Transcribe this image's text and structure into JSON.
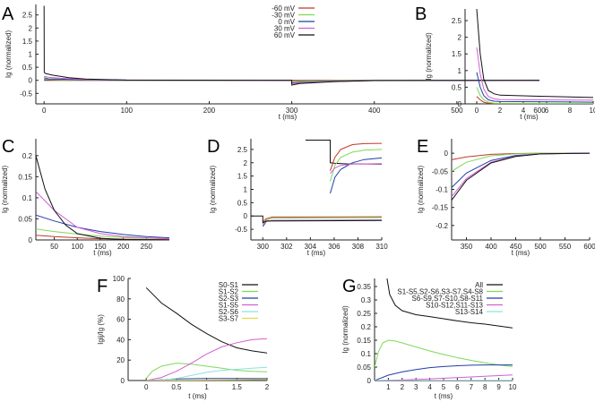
{
  "colors": {
    "-60 mV": "#c0392b",
    "-30 mV": "#7ed957",
    "0 mV": "#1f3fa8",
    "30 mV": "#d35fd3",
    "60 mV": "#111111",
    "S0-S1": "#111111",
    "S1-S2": "#7ed957",
    "S2-S3": "#1f3fa8",
    "S1-S5": "#d35fd3",
    "S2-S6": "#8fe0e0",
    "S3-S7": "#e6d84a"
  },
  "chart_data": [
    {
      "panel": "A",
      "type": "line",
      "title": "",
      "xlabel": "t (ms)",
      "ylabel": "Ig (normalized)",
      "xlim": [
        -10,
        600
      ],
      "ylim": [
        -0.9,
        2.9
      ],
      "xticks": [
        0,
        100,
        200,
        300,
        400,
        500,
        600
      ],
      "yticks": [
        -0.5,
        0,
        0.5,
        1,
        1.5,
        2,
        2.5
      ],
      "grid": false,
      "legend": "top-right",
      "series": [
        {
          "name": "-60 mV",
          "x": [
            0,
            5,
            20,
            50,
            100,
            299.9,
            300,
            310,
            350,
            400,
            600
          ],
          "y": [
            0.03,
            0.02,
            0.01,
            0.005,
            0,
            0,
            -0.02,
            -0.01,
            -0.003,
            0,
            0
          ]
        },
        {
          "name": "-30 mV",
          "x": [
            0,
            5,
            20,
            50,
            100,
            299.9,
            300,
            310,
            350,
            400,
            600
          ],
          "y": [
            0.06,
            0.04,
            0.025,
            0.01,
            0,
            0,
            -0.05,
            -0.04,
            -0.015,
            -0.003,
            0
          ]
        },
        {
          "name": "0 mV",
          "x": [
            0,
            5,
            20,
            50,
            100,
            299.9,
            300,
            310,
            350,
            400,
            600
          ],
          "y": [
            0.1,
            0.06,
            0.045,
            0.02,
            0.005,
            0,
            -0.1,
            -0.08,
            -0.03,
            -0.008,
            0
          ]
        },
        {
          "name": "30 mV",
          "x": [
            0,
            5,
            20,
            50,
            100,
            299.9,
            300,
            310,
            350,
            400,
            600
          ],
          "y": [
            0.15,
            0.12,
            0.08,
            0.03,
            0.01,
            0,
            -0.13,
            -0.1,
            -0.04,
            -0.01,
            0
          ]
        },
        {
          "name": "60 mV",
          "x": [
            0,
            0.2,
            2,
            10,
            30,
            50,
            100,
            299.9,
            300,
            310,
            350,
            400,
            600
          ],
          "y": [
            2.85,
            0.3,
            0.26,
            0.2,
            0.1,
            0.05,
            0.01,
            0,
            -0.18,
            -0.12,
            -0.05,
            -0.01,
            0
          ]
        }
      ]
    },
    {
      "panel": "B",
      "type": "line",
      "xlabel": "t (ms)",
      "ylabel": "Ig (normalized)",
      "xlim": [
        -1,
        10
      ],
      "ylim": [
        0,
        2.85
      ],
      "xticks": [
        0,
        2,
        4,
        6,
        8,
        10
      ],
      "yticks": [
        0,
        0.5,
        1,
        1.5,
        2,
        2.5
      ],
      "grid": false,
      "series": [
        {
          "name": "-60 mV",
          "x": [
            0,
            0.3,
            0.6,
            1,
            1.5,
            10
          ],
          "y": [
            0.22,
            0.12,
            0.05,
            0.02,
            0.01,
            0.005
          ]
        },
        {
          "name": "-30 mV",
          "x": [
            0,
            0.3,
            0.6,
            1,
            1.5,
            2,
            10
          ],
          "y": [
            0.5,
            0.25,
            0.12,
            0.05,
            0.02,
            0.015,
            0.01
          ]
        },
        {
          "name": "0 mV",
          "x": [
            0,
            0.3,
            0.6,
            1,
            1.5,
            2,
            10
          ],
          "y": [
            0.95,
            0.5,
            0.25,
            0.12,
            0.08,
            0.07,
            0.05
          ]
        },
        {
          "name": "30 mV",
          "x": [
            0,
            0.3,
            0.6,
            1,
            1.5,
            2,
            5,
            10
          ],
          "y": [
            1.7,
            0.9,
            0.45,
            0.22,
            0.15,
            0.13,
            0.12,
            0.11
          ]
        },
        {
          "name": "60 mV",
          "x": [
            0,
            0.3,
            0.6,
            1,
            1.5,
            2,
            5,
            10
          ],
          "y": [
            2.85,
            1.5,
            0.75,
            0.4,
            0.3,
            0.26,
            0.23,
            0.19
          ]
        }
      ]
    },
    {
      "panel": "C",
      "type": "line",
      "xlabel": "t (ms)",
      "ylabel": "Ig (normalized)",
      "xlim": [
        10,
        300
      ],
      "ylim": [
        0,
        0.24
      ],
      "xticks": [
        50,
        100,
        150,
        200,
        250
      ],
      "yticks": [
        0,
        0.05,
        0.1,
        0.15,
        0.2
      ],
      "grid": false,
      "series": [
        {
          "name": "-60 mV",
          "x": [
            10,
            50,
            100,
            150,
            200,
            250,
            300
          ],
          "y": [
            0.011,
            0.008,
            0.005,
            0.003,
            0.002,
            0.001,
            0.001
          ]
        },
        {
          "name": "-30 mV",
          "x": [
            10,
            50,
            100,
            150,
            200,
            250,
            300
          ],
          "y": [
            0.026,
            0.02,
            0.014,
            0.009,
            0.006,
            0.004,
            0.003
          ]
        },
        {
          "name": "0 mV",
          "x": [
            10,
            50,
            100,
            150,
            200,
            250,
            300
          ],
          "y": [
            0.059,
            0.045,
            0.03,
            0.02,
            0.013,
            0.008,
            0.005
          ]
        },
        {
          "name": "30 mV",
          "x": [
            10,
            50,
            100,
            150,
            200,
            250,
            300
          ],
          "y": [
            0.115,
            0.07,
            0.03,
            0.015,
            0.008,
            0.005,
            0.003
          ]
        },
        {
          "name": "60 mV",
          "x": [
            10,
            30,
            50,
            75,
            100,
            150,
            200,
            300
          ],
          "y": [
            0.2,
            0.12,
            0.07,
            0.035,
            0.015,
            0.004,
            0.001,
            0
          ]
        }
      ]
    },
    {
      "panel": "D",
      "type": "line",
      "xlabel": "t (ms)",
      "ylabel": "Ig (normalized)",
      "xlim": [
        299,
        310
      ],
      "ylim": [
        -0.9,
        2.9
      ],
      "xticks": [
        300,
        302,
        304,
        306,
        308,
        310
      ],
      "yticks": [
        -0.5,
        0,
        0.5,
        1,
        1.5,
        2,
        2.5
      ],
      "grid": false,
      "series": [
        {
          "name": "-60 mV",
          "x": [
            300,
            300.3,
            300.8,
            310
          ],
          "y": [
            -0.22,
            -0.1,
            -0.04,
            -0.03
          ]
        },
        {
          "name": "-30 mV",
          "x": [
            300,
            300.3,
            300.8,
            310
          ],
          "y": [
            -0.3,
            -0.15,
            -0.08,
            -0.06
          ]
        },
        {
          "name": "0 mV",
          "x": [
            300,
            300.3,
            300.8,
            310
          ],
          "y": [
            -0.4,
            -0.2,
            -0.17,
            -0.15
          ]
        },
        {
          "name": "30 mV",
          "x": [
            300,
            300.3,
            300.8,
            310
          ],
          "y": [
            -0.35,
            -0.19,
            -0.17,
            -0.16
          ]
        },
        {
          "name": "60 mV",
          "x": [
            299,
            300,
            300,
            300.3,
            310
          ],
          "y": [
            0,
            0,
            -0.25,
            -0.19,
            -0.17
          ]
        }
      ],
      "inset": {
        "xlim": [
          303.3,
          310
        ],
        "ylim": [
          0.7,
          2.9
        ],
        "series": [
          {
            "name": "60 mV",
            "x": [
              303.5,
              305.6,
              305.6,
              306,
              307,
              310
            ],
            "y": [
              2.85,
              2.85,
              2.0,
              1.98,
              1.96,
              1.95
            ]
          },
          {
            "name": "-60 mV",
            "x": [
              305.6,
              306,
              306.5,
              307.5,
              308.5,
              310
            ],
            "y": [
              1.7,
              2.2,
              2.5,
              2.68,
              2.72,
              2.73
            ]
          },
          {
            "name": "-30 mV",
            "x": [
              305.6,
              306,
              306.5,
              307.5,
              308.5,
              310
            ],
            "y": [
              1.3,
              1.9,
              2.2,
              2.4,
              2.47,
              2.5
            ]
          },
          {
            "name": "0 mV",
            "x": [
              305.6,
              306,
              306.5,
              307.5,
              308.5,
              310
            ],
            "y": [
              0.85,
              1.45,
              1.75,
              2.0,
              2.12,
              2.18
            ]
          },
          {
            "name": "30 mV",
            "x": [
              305.6,
              306,
              306.5,
              307.5,
              310
            ],
            "y": [
              1.6,
              1.8,
              1.9,
              1.95,
              1.97
            ]
          }
        ]
      }
    },
    {
      "panel": "E",
      "type": "line",
      "xlabel": "t (ms)",
      "ylabel": "Ig (normalized)",
      "xlim": [
        320,
        600
      ],
      "ylim": [
        -0.24,
        0.04
      ],
      "xticks": [
        350,
        400,
        450,
        500,
        550,
        600
      ],
      "yticks": [
        -0.2,
        -0.15,
        -0.1,
        -0.05,
        0
      ],
      "grid": false,
      "series": [
        {
          "name": "-60 mV",
          "x": [
            320,
            350,
            400,
            450,
            500,
            600
          ],
          "y": [
            -0.018,
            -0.01,
            -0.003,
            -0.001,
            0,
            0
          ]
        },
        {
          "name": "-30 mV",
          "x": [
            320,
            350,
            400,
            450,
            500,
            600
          ],
          "y": [
            -0.05,
            -0.025,
            -0.007,
            -0.002,
            0,
            0
          ]
        },
        {
          "name": "0 mV",
          "x": [
            320,
            350,
            400,
            450,
            500,
            600
          ],
          "y": [
            -0.095,
            -0.055,
            -0.02,
            -0.006,
            -0.002,
            0
          ]
        },
        {
          "name": "30 mV",
          "x": [
            320,
            350,
            400,
            450,
            500,
            600
          ],
          "y": [
            -0.12,
            -0.07,
            -0.025,
            -0.008,
            -0.002,
            0
          ]
        },
        {
          "name": "60 mV",
          "x": [
            320,
            350,
            400,
            450,
            500,
            600
          ],
          "y": [
            -0.13,
            -0.075,
            -0.027,
            -0.009,
            -0.002,
            0
          ]
        }
      ]
    },
    {
      "panel": "F",
      "type": "line",
      "xlabel": "t (ms)",
      "ylabel": "Igij/Ig (%)",
      "xlim": [
        -0.3,
        2
      ],
      "ylim": [
        0,
        100
      ],
      "xticks": [
        0,
        0.5,
        1,
        1.5,
        2
      ],
      "yticks": [
        0,
        20,
        40,
        60,
        80,
        100
      ],
      "grid": false,
      "legend": "top-right",
      "series": [
        {
          "name": "S0-S1",
          "x": [
            0,
            0.25,
            0.5,
            0.75,
            1,
            1.25,
            1.5,
            1.75,
            2
          ],
          "y": [
            91,
            76,
            66,
            55,
            46,
            38,
            32,
            29,
            27
          ]
        },
        {
          "name": "S1-S2",
          "x": [
            0,
            0.1,
            0.25,
            0.5,
            0.75,
            1,
            1.25,
            1.5,
            1.75,
            2
          ],
          "y": [
            2,
            9,
            14,
            17,
            16,
            14,
            12,
            10,
            9,
            8.5
          ]
        },
        {
          "name": "S2-S3",
          "x": [
            0,
            0.5,
            1,
            1.5,
            2
          ],
          "y": [
            0,
            1.5,
            2,
            2,
            1.8
          ]
        },
        {
          "name": "S1-S5",
          "x": [
            0,
            0.25,
            0.5,
            0.75,
            1,
            1.25,
            1.5,
            1.75,
            2
          ],
          "y": [
            0,
            3,
            9,
            17,
            26,
            33,
            37,
            40,
            41
          ]
        },
        {
          "name": "S2-S6",
          "x": [
            0,
            0.25,
            0.5,
            0.75,
            1,
            1.25,
            1.5,
            1.75,
            2
          ],
          "y": [
            0,
            0.5,
            2,
            5,
            8,
            10,
            11,
            12,
            13
          ]
        },
        {
          "name": "S3-S7",
          "x": [
            0,
            1,
            2
          ],
          "y": [
            0,
            0.5,
            1
          ]
        }
      ]
    },
    {
      "panel": "G",
      "type": "line",
      "xlabel": "t (ms)",
      "ylabel": "Ig (normalized)",
      "xlim": [
        0,
        10
      ],
      "ylim": [
        0,
        0.38
      ],
      "xticks": [
        1,
        2,
        3,
        4,
        5,
        6,
        7,
        8,
        9,
        10
      ],
      "yticks": [
        0,
        0.05,
        0.1,
        0.15,
        0.2,
        0.25,
        0.3,
        0.35
      ],
      "grid": false,
      "legend": "top-right",
      "series": [
        {
          "name": "All",
          "x": [
            0.9,
            1.1,
            1.5,
            2,
            3,
            4,
            5,
            6,
            7,
            8,
            9,
            10
          ],
          "y": [
            0.38,
            0.32,
            0.28,
            0.26,
            0.245,
            0.238,
            0.23,
            0.222,
            0.215,
            0.21,
            0.203,
            0.196
          ]
        },
        {
          "name": "S1-S5,S2-S6,S3-S7,S4-S8",
          "x": [
            0,
            0.3,
            0.6,
            1,
            1.5,
            2,
            3,
            4,
            5,
            6,
            7,
            8,
            9,
            10
          ],
          "y": [
            0.05,
            0.11,
            0.14,
            0.15,
            0.147,
            0.14,
            0.125,
            0.11,
            0.097,
            0.085,
            0.075,
            0.066,
            0.058,
            0.052
          ]
        },
        {
          "name": "S6-S9,S7-S10,S8-S11",
          "x": [
            0,
            1,
            2,
            3,
            4,
            5,
            6,
            7,
            8,
            9,
            10
          ],
          "y": [
            0,
            0.02,
            0.032,
            0.041,
            0.048,
            0.052,
            0.055,
            0.057,
            0.058,
            0.058,
            0.058
          ]
        },
        {
          "name": "S10-S12,S11-S13",
          "x": [
            0,
            2,
            4,
            6,
            8,
            10
          ],
          "y": [
            0,
            0.002,
            0.006,
            0.011,
            0.016,
            0.021
          ]
        },
        {
          "name": "S13-S14",
          "x": [
            0,
            5,
            10
          ],
          "y": [
            0,
            0.0005,
            0.001
          ]
        }
      ]
    }
  ],
  "legendA": [
    "-60 mV",
    "-30 mV",
    "0 mV",
    "30 mV",
    "60 mV"
  ],
  "legendF": [
    "S0-S1",
    "S1-S2",
    "S2-S3",
    "S1-S5",
    "S2-S6",
    "S3-S7"
  ],
  "legendG": [
    "All",
    "S1-S5,S2-S6,S3-S7,S4-S8",
    "S6-S9,S7-S10,S8-S11",
    "S10-S12,S11-S13",
    "S13-S14"
  ],
  "legendGColors": [
    "#111111",
    "#7ed957",
    "#1f3fa8",
    "#d35fd3",
    "#8fe0e0"
  ]
}
